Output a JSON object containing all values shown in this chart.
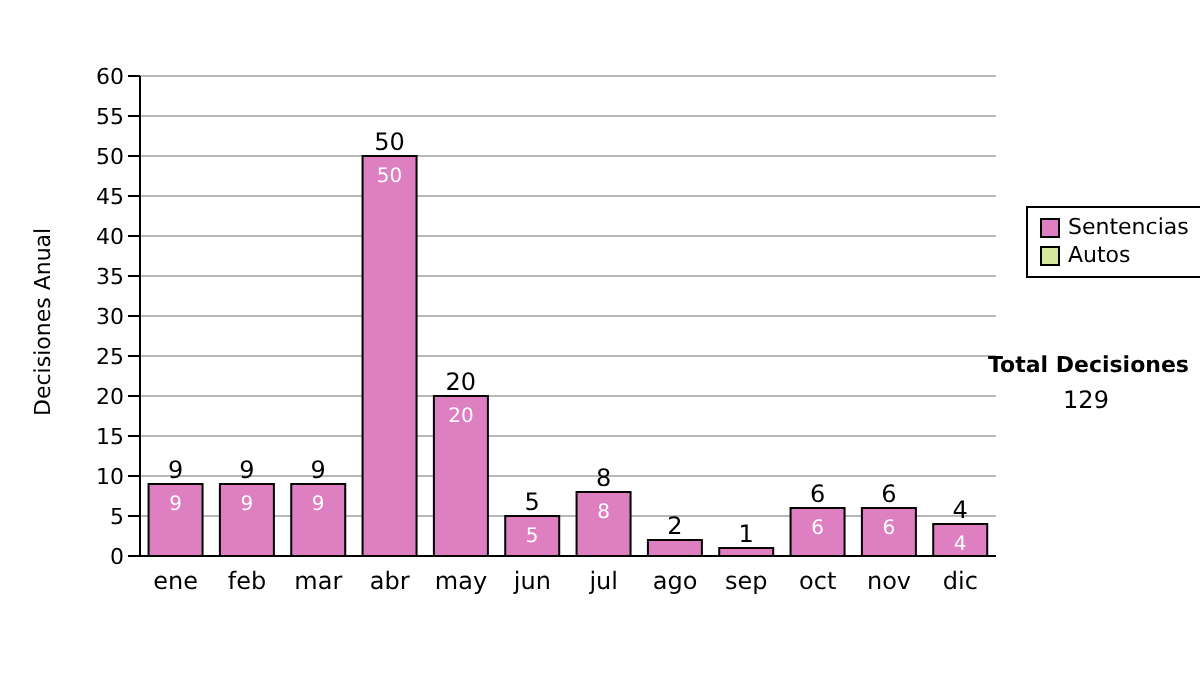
{
  "chart_data": {
    "type": "bar",
    "stacked": true,
    "ylabel": "Decisiones Anual",
    "categories": [
      "ene",
      "feb",
      "mar",
      "abr",
      "may",
      "jun",
      "jul",
      "ago",
      "sep",
      "oct",
      "nov",
      "dic"
    ],
    "series": [
      {
        "name": "Sentencias",
        "color": "#dd7fc0",
        "values": [
          9,
          9,
          9,
          50,
          20,
          5,
          8,
          2,
          1,
          6,
          6,
          4
        ],
        "value_labels": [
          "9",
          "9",
          "9",
          "50",
          "20",
          "5",
          "8",
          null,
          null,
          "6",
          "6",
          "4"
        ]
      },
      {
        "name": "Autos",
        "color": "#d6e89c",
        "values": [
          0,
          0,
          0,
          0,
          0,
          0,
          0,
          0,
          0,
          0,
          0,
          0
        ]
      }
    ],
    "totals": [
      "9",
      "9",
      "9",
      "50",
      "20",
      "5",
      "8",
      "2",
      "1",
      "6",
      "6",
      "4"
    ],
    "ylim": [
      0,
      60
    ],
    "yticks": [
      0,
      5,
      10,
      15,
      20,
      25,
      30,
      35,
      40,
      45,
      50,
      55,
      60
    ],
    "grid": "y",
    "legend": "right",
    "annotations": [
      "Total Decisiones",
      "129"
    ]
  }
}
